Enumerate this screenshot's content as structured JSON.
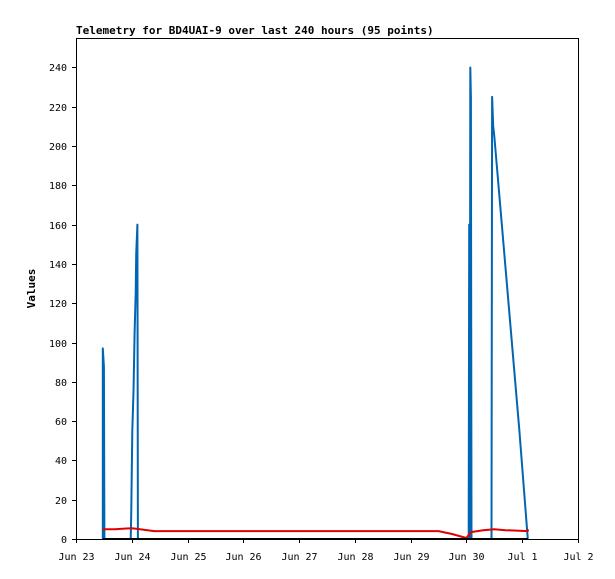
{
  "chart_data": {
    "type": "line",
    "title": "Telemetry for BD4UAI-9 over last 240 hours (95 points)",
    "ylabel": "Values",
    "xlabel": "",
    "ylim": [
      0,
      255
    ],
    "xlim": [
      "Jun 23",
      "Jul 2"
    ],
    "y_ticks": [
      0,
      20,
      40,
      60,
      80,
      100,
      120,
      140,
      160,
      180,
      200,
      220,
      240
    ],
    "x_ticks": [
      "Jun 23",
      "Jun 24",
      "Jun 25",
      "Jun 26",
      "Jun 27",
      "Jun 28",
      "Jun 29",
      "Jun 30",
      "Jul 1",
      "Jul 2"
    ],
    "grid": false,
    "legend": "none",
    "series": [
      {
        "color": "#0066b3",
        "points": [
          [
            0.48,
            0
          ],
          [
            0.48,
            97
          ],
          [
            0.5,
            88
          ],
          [
            0.51,
            0
          ],
          [
            0.98,
            0
          ],
          [
            0.99,
            12
          ],
          [
            1.01,
            55
          ],
          [
            1.03,
            75
          ],
          [
            1.05,
            105
          ],
          [
            1.07,
            125
          ],
          [
            1.08,
            145
          ],
          [
            1.1,
            160
          ],
          [
            1.11,
            0
          ],
          [
            7.04,
            0
          ],
          [
            7.05,
            160
          ],
          [
            7.06,
            0
          ],
          [
            7.07,
            240
          ],
          [
            7.08,
            225
          ],
          [
            7.09,
            0
          ],
          [
            7.45,
            0
          ],
          [
            7.46,
            225
          ],
          [
            7.48,
            210
          ],
          [
            7.5,
            205
          ],
          [
            7.95,
            55
          ],
          [
            8.1,
            0
          ]
        ]
      },
      {
        "color": "#e00000",
        "points": [
          [
            0.48,
            5
          ],
          [
            0.7,
            5
          ],
          [
            1.0,
            5.5
          ],
          [
            1.15,
            5
          ],
          [
            1.4,
            4
          ],
          [
            2.0,
            4
          ],
          [
            3.0,
            4
          ],
          [
            4.0,
            4
          ],
          [
            5.0,
            4
          ],
          [
            6.0,
            4
          ],
          [
            6.5,
            4
          ],
          [
            6.75,
            2.5
          ],
          [
            7.0,
            0.5
          ],
          [
            7.08,
            3.5
          ],
          [
            7.3,
            4.5
          ],
          [
            7.5,
            5
          ],
          [
            7.7,
            4.5
          ],
          [
            8.1,
            4
          ],
          [
            8.1,
            5
          ]
        ]
      },
      {
        "color": "#000000",
        "points": [
          [
            0.48,
            0
          ],
          [
            8.1,
            0
          ]
        ]
      }
    ]
  }
}
